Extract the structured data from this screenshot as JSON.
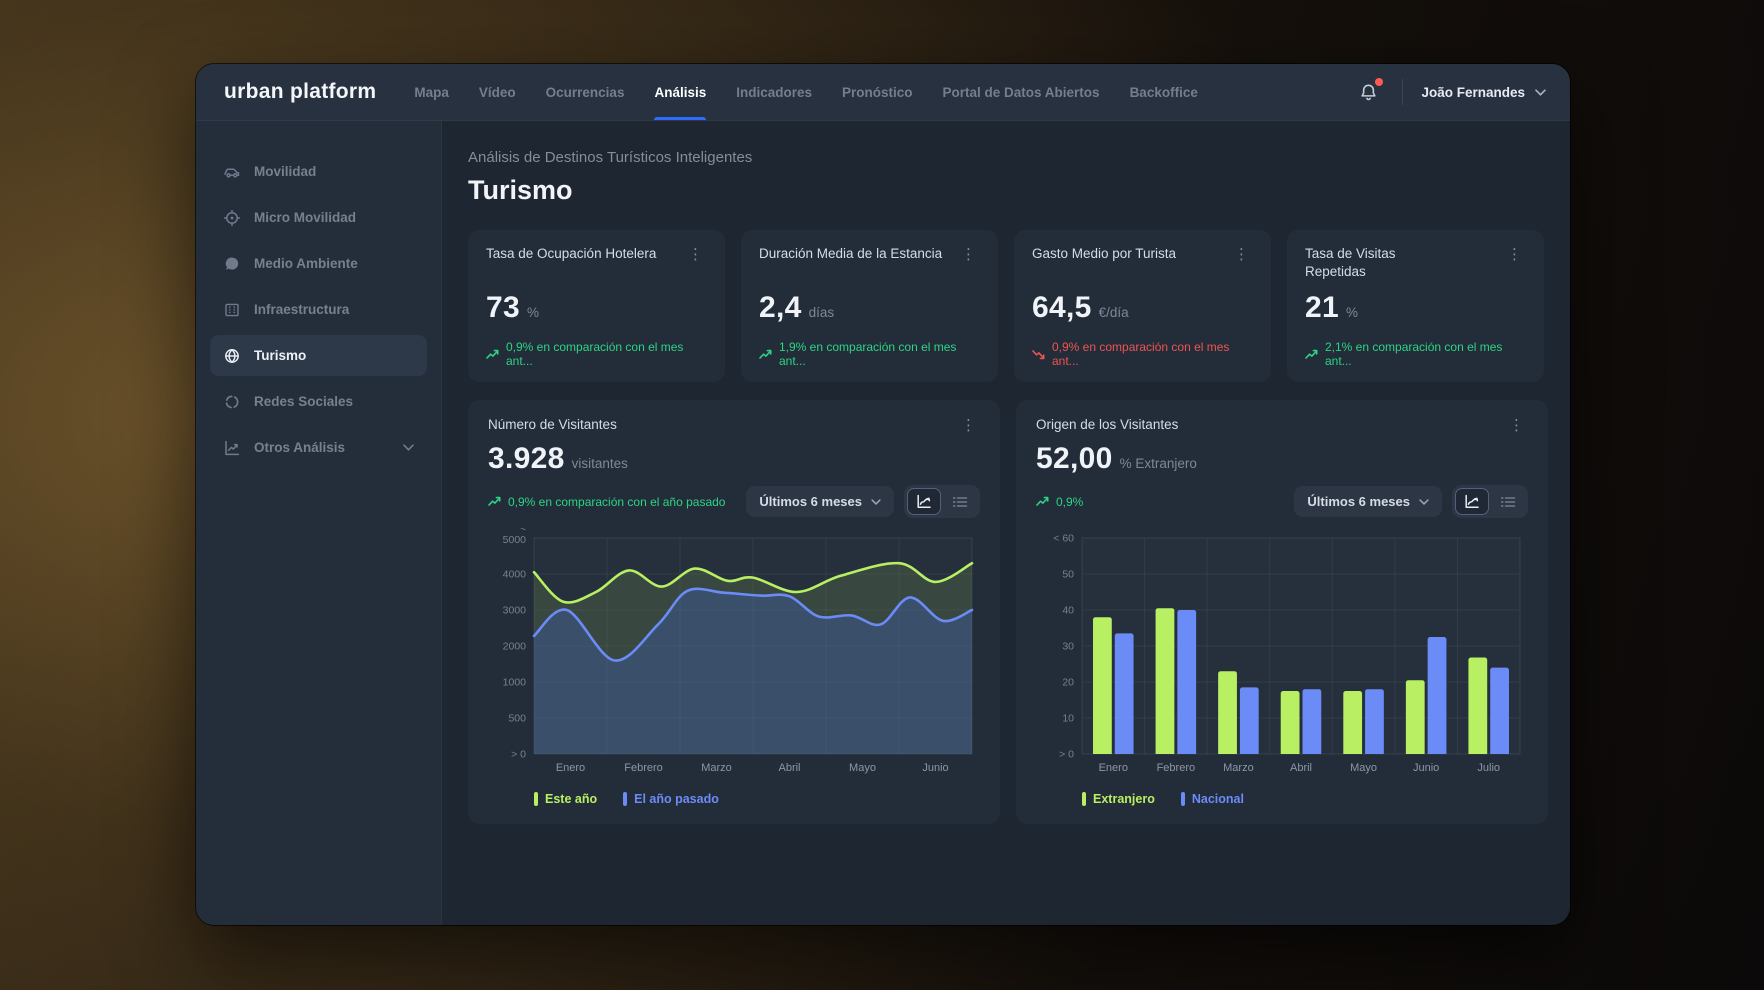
{
  "topbar": {
    "logo": "urban platform",
    "nav": [
      {
        "label": "Mapa",
        "active": false
      },
      {
        "label": "Vídeo",
        "active": false
      },
      {
        "label": "Ocurrencias",
        "active": false
      },
      {
        "label": "Análisis",
        "active": true
      },
      {
        "label": "Indicadores",
        "active": false
      },
      {
        "label": "Pronóstico",
        "active": false
      },
      {
        "label": "Portal de Datos Abiertos",
        "active": false
      },
      {
        "label": "Backoffice",
        "active": false
      }
    ],
    "notifications": {
      "icon": "bell-icon",
      "unread_dot": true
    },
    "user": {
      "name": "João Fernandes"
    }
  },
  "sidebar": {
    "items": [
      {
        "label": "Movilidad",
        "icon": "car-icon",
        "active": false
      },
      {
        "label": "Micro Movilidad",
        "icon": "target-icon",
        "active": false
      },
      {
        "label": "Medio Ambiente",
        "icon": "chat-bubble-icon",
        "active": false
      },
      {
        "label": "Infraestructura",
        "icon": "building-icon",
        "active": false
      },
      {
        "label": "Turismo",
        "icon": "globe-icon",
        "active": true
      },
      {
        "label": "Redes Sociales",
        "icon": "refresh-icon",
        "active": false
      },
      {
        "label": "Otros Análisis",
        "icon": "chart-icon",
        "active": false,
        "expandable": true
      }
    ]
  },
  "page": {
    "subtitle": "Análisis de Destinos Turísticos Inteligentes",
    "title": "Turismo"
  },
  "kpis": [
    {
      "title": "Tasa de Ocupación Hotelera",
      "value": "73",
      "unit": "%",
      "trend": "up",
      "change": "0,9% en comparación con el mes ant..."
    },
    {
      "title": "Duración Media de la Estancia",
      "value": "2,4",
      "unit": "días",
      "trend": "up",
      "change": "1,9% en comparación con el mes ant..."
    },
    {
      "title": "Gasto Medio por Turista",
      "value": "64,5",
      "unit": "€/día",
      "trend": "down",
      "change": "0,9% en comparación con el mes ant..."
    },
    {
      "title": "Tasa de Visitas\nRepetidas",
      "value": "21",
      "unit": "%",
      "trend": "up",
      "change": "2,1% en comparación con el mes ant..."
    }
  ],
  "visitors_card": {
    "title": "Número de Visitantes",
    "value": "3.928",
    "unit": "visitantes",
    "trend": "up",
    "change": "0,9% en comparación con el año pasado",
    "range_selector": "Últimos 6 meses"
  },
  "origin_card": {
    "title": "Origen de los Visitantes",
    "value": "52,00",
    "unit": "% Extranjero",
    "trend": "up",
    "change": "0,9%",
    "range_selector": "Últimos 6 meses"
  },
  "chart_data": [
    {
      "type": "area",
      "title": "Número de Visitantes",
      "x_categories": [
        "Enero",
        "Febrero",
        "Marzo",
        "Abril",
        "Mayo",
        "Junio"
      ],
      "y_ticks": [
        "< 5000",
        "4000",
        "3000",
        "2000",
        "1000",
        "500",
        "> 0"
      ],
      "y_tick_values": [
        5000,
        4000,
        3000,
        2000,
        1000,
        500,
        0
      ],
      "grid": true,
      "legend_position": "bottom-left",
      "series": [
        {
          "name": "Este año",
          "color": "#b9ef63",
          "points": [
            [
              0,
              4050
            ],
            [
              0.4,
              3230
            ],
            [
              0.85,
              3500
            ],
            [
              1.3,
              4100
            ],
            [
              1.75,
              3650
            ],
            [
              2.2,
              4150
            ],
            [
              2.65,
              3810
            ],
            [
              3.0,
              3900
            ],
            [
              3.6,
              3500
            ],
            [
              4.2,
              3950
            ],
            [
              5.0,
              4300
            ],
            [
              5.5,
              3780
            ],
            [
              6,
              4300
            ]
          ]
        },
        {
          "name": "El año pasado",
          "color": "#6b8bf7",
          "points": [
            [
              0,
              2280
            ],
            [
              0.45,
              3000
            ],
            [
              1.1,
              1600
            ],
            [
              1.7,
              2600
            ],
            [
              2.1,
              3530
            ],
            [
              2.6,
              3480
            ],
            [
              3.1,
              3400
            ],
            [
              3.5,
              3380
            ],
            [
              3.9,
              2820
            ],
            [
              4.35,
              2850
            ],
            [
              4.75,
              2600
            ],
            [
              5.15,
              3350
            ],
            [
              5.6,
              2700
            ],
            [
              6,
              3000
            ]
          ]
        }
      ]
    },
    {
      "type": "bar",
      "title": "Origen de los Visitantes",
      "x_categories": [
        "Enero",
        "Febrero",
        "Marzo",
        "Abril",
        "Mayo",
        "Junio",
        "Julio"
      ],
      "y_ticks": [
        "< 60",
        "50",
        "40",
        "30",
        "20",
        "10",
        "> 0"
      ],
      "ylim": [
        0,
        60
      ],
      "grid": true,
      "legend_position": "bottom-left",
      "series": [
        {
          "name": "Extranjero",
          "color": "#b9ef63",
          "values": [
            38,
            40.5,
            23,
            17.5,
            17.5,
            20.5,
            26.8
          ]
        },
        {
          "name": "Nacional",
          "color": "#6b8bf7",
          "values": [
            33.5,
            40,
            18.5,
            18,
            18,
            32.5,
            24
          ]
        }
      ]
    }
  ],
  "colors": {
    "accent_blue": "#2e6bff",
    "positive": "#2cd483",
    "negative": "#ef5350",
    "series_green": "#b9ef63",
    "series_blue": "#6b8bf7"
  }
}
